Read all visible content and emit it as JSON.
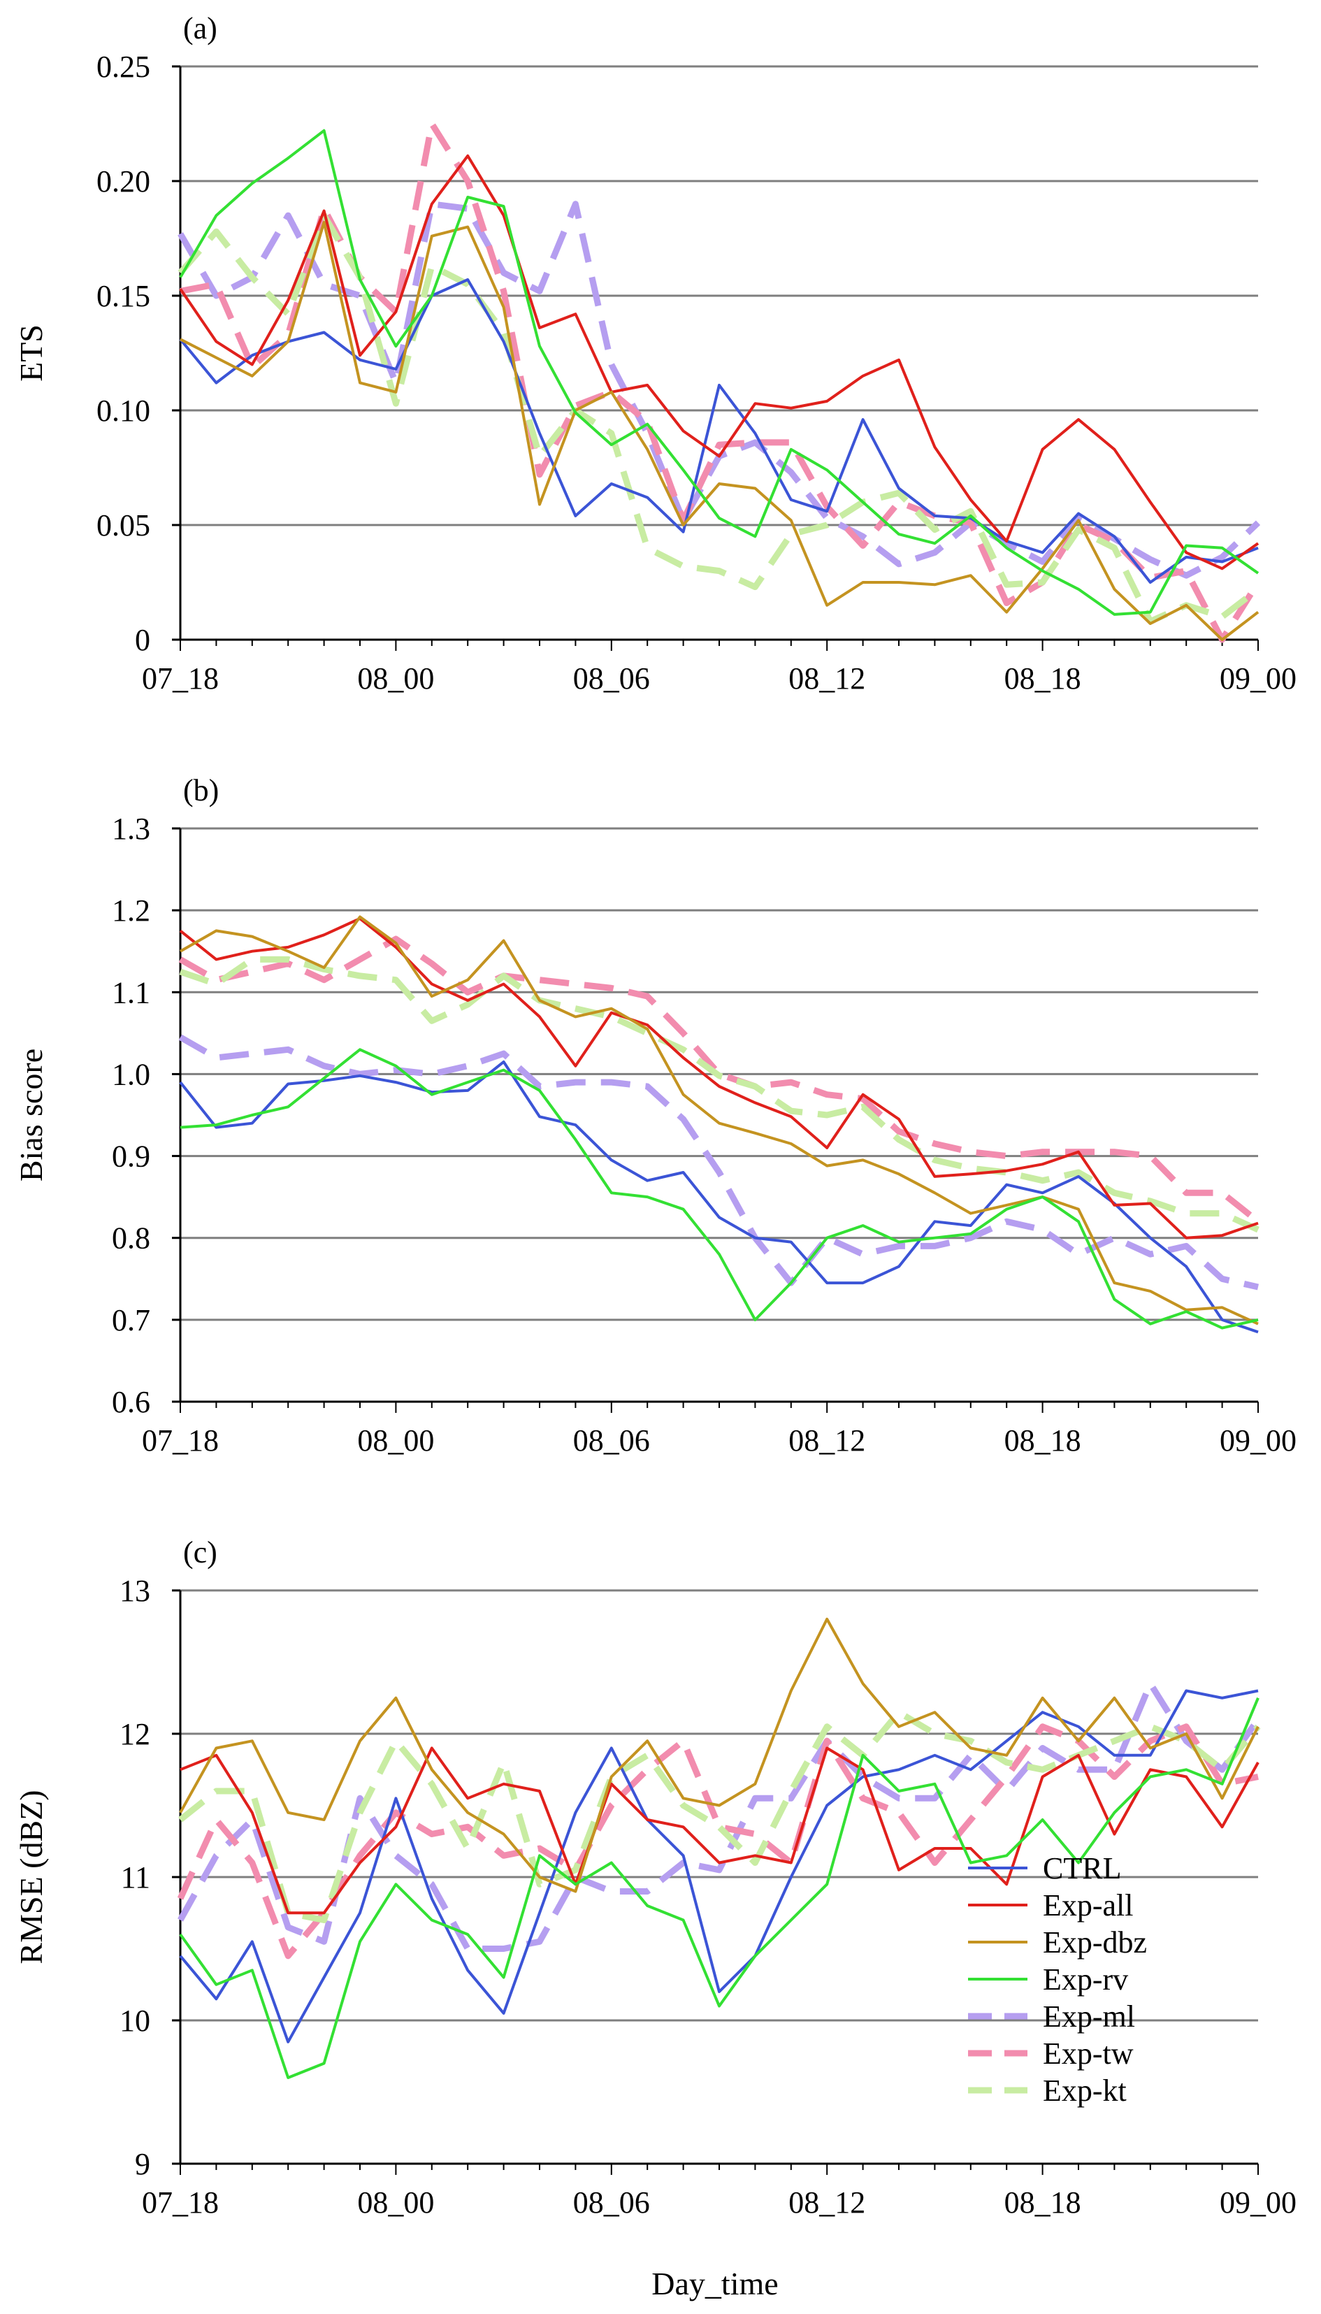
{
  "figure": {
    "xlabel": "Day_time",
    "x_tick_labels": [
      "07_18",
      "08_00",
      "08_06",
      "08_12",
      "08_18",
      "09_00"
    ],
    "legend": [
      "CTRL",
      "Exp-all",
      "Exp-dbz",
      "Exp-rv",
      "Exp-ml",
      "Exp-tw",
      "Exp-kt"
    ]
  },
  "series_style": [
    {
      "name": "CTRL",
      "color": "#3b54d6",
      "dashed": false
    },
    {
      "name": "Exp-all",
      "color": "#e0201b",
      "dashed": false
    },
    {
      "name": "Exp-dbz",
      "color": "#c49320",
      "dashed": false
    },
    {
      "name": "Exp-rv",
      "color": "#33e033",
      "dashed": false
    },
    {
      "name": "Exp-ml",
      "color": "#b59ef0",
      "dashed": true
    },
    {
      "name": "Exp-tw",
      "color": "#f28cae",
      "dashed": true
    },
    {
      "name": "Exp-kt",
      "color": "#c8eca2",
      "dashed": true
    }
  ],
  "chart_data": [
    {
      "type": "line",
      "panel_label": "(a)",
      "title": "",
      "xlabel": "",
      "ylabel": "ETS",
      "ylim": [
        0,
        0.25
      ],
      "y_ticks": [
        0,
        0.05,
        0.1,
        0.15,
        0.2,
        0.25
      ],
      "y_tick_labels": [
        "0",
        "0.05",
        "0.10",
        "0.15",
        "0.20",
        "0.25"
      ],
      "grid": true,
      "x_hours": [
        0,
        1,
        2,
        3,
        4,
        5,
        6,
        7,
        8,
        9,
        10,
        11,
        12,
        13,
        14,
        15,
        16,
        17,
        18,
        19,
        20,
        21,
        22,
        23,
        24,
        25,
        26,
        27,
        28,
        29,
        30
      ],
      "series": [
        {
          "name": "CTRL",
          "values": [
            0.131,
            0.112,
            0.124,
            0.13,
            0.134,
            0.122,
            0.118,
            0.15,
            0.157,
            0.13,
            0.09,
            0.054,
            0.068,
            0.062,
            0.047,
            0.111,
            0.09,
            0.061,
            0.056,
            0.096,
            0.066,
            0.054,
            0.053,
            0.043,
            0.038,
            0.055,
            0.045,
            0.025,
            0.036,
            0.034,
            0.04
          ]
        },
        {
          "name": "Exp-all",
          "values": [
            0.153,
            0.13,
            0.12,
            0.148,
            0.187,
            0.124,
            0.143,
            0.19,
            0.211,
            0.185,
            0.136,
            0.142,
            0.108,
            0.111,
            0.091,
            0.08,
            0.103,
            0.101,
            0.104,
            0.115,
            0.122,
            0.084,
            0.061,
            0.043,
            0.083,
            0.096,
            0.083,
            0.06,
            0.038,
            0.031,
            0.042
          ]
        },
        {
          "name": "Exp-dbz",
          "values": [
            0.131,
            0.123,
            0.115,
            0.13,
            0.182,
            0.112,
            0.108,
            0.176,
            0.18,
            0.145,
            0.059,
            0.1,
            0.108,
            0.083,
            0.05,
            0.068,
            0.066,
            0.052,
            0.015,
            0.025,
            0.025,
            0.024,
            0.028,
            0.012,
            0.031,
            0.052,
            0.022,
            0.007,
            0.015,
            0.0,
            0.012
          ]
        },
        {
          "name": "Exp-rv",
          "values": [
            0.158,
            0.185,
            0.199,
            0.21,
            0.222,
            0.157,
            0.128,
            0.15,
            0.193,
            0.189,
            0.128,
            0.099,
            0.085,
            0.094,
            0.074,
            0.053,
            0.045,
            0.083,
            0.074,
            0.06,
            0.046,
            0.042,
            0.054,
            0.04,
            0.03,
            0.022,
            0.011,
            0.012,
            0.041,
            0.04,
            0.029
          ]
        },
        {
          "name": "Exp-ml",
          "values": [
            0.177,
            0.15,
            0.158,
            0.185,
            0.155,
            0.15,
            0.112,
            0.19,
            0.188,
            0.16,
            0.152,
            0.19,
            0.12,
            0.09,
            0.052,
            0.08,
            0.086,
            0.073,
            0.053,
            0.045,
            0.033,
            0.038,
            0.051,
            0.042,
            0.034,
            0.053,
            0.044,
            0.035,
            0.028,
            0.036,
            0.051
          ]
        },
        {
          "name": "Exp-tw",
          "values": [
            0.152,
            0.155,
            0.119,
            0.133,
            0.188,
            0.158,
            0.143,
            0.225,
            0.2,
            0.152,
            0.072,
            0.102,
            0.108,
            0.095,
            0.052,
            0.085,
            0.086,
            0.086,
            0.058,
            0.041,
            0.06,
            0.054,
            0.051,
            0.016,
            0.025,
            0.05,
            0.043,
            0.027,
            0.03,
            0.0,
            0.025
          ]
        },
        {
          "name": "Exp-kt",
          "values": [
            0.16,
            0.178,
            0.158,
            0.142,
            0.185,
            0.158,
            0.103,
            0.163,
            0.155,
            0.134,
            0.08,
            0.1,
            0.09,
            0.04,
            0.032,
            0.03,
            0.023,
            0.046,
            0.05,
            0.06,
            0.064,
            0.048,
            0.056,
            0.024,
            0.025,
            0.048,
            0.04,
            0.008,
            0.015,
            0.01,
            0.022
          ]
        }
      ]
    },
    {
      "type": "line",
      "panel_label": "(b)",
      "title": "",
      "xlabel": "",
      "ylabel": "Bias score",
      "ylim": [
        0.6,
        1.3
      ],
      "y_ticks": [
        0.6,
        0.7,
        0.8,
        0.9,
        1.0,
        1.1,
        1.2,
        1.3
      ],
      "y_tick_labels": [
        "0.6",
        "0.7",
        "0.8",
        "0.9",
        "1.0",
        "1.1",
        "1.2",
        "1.3"
      ],
      "grid": true,
      "x_hours": [
        0,
        1,
        2,
        3,
        4,
        5,
        6,
        7,
        8,
        9,
        10,
        11,
        12,
        13,
        14,
        15,
        16,
        17,
        18,
        19,
        20,
        21,
        22,
        23,
        24,
        25,
        26,
        27,
        28,
        29,
        30
      ],
      "series": [
        {
          "name": "CTRL",
          "values": [
            0.99,
            0.935,
            0.94,
            0.988,
            0.992,
            0.998,
            0.99,
            0.978,
            0.98,
            1.015,
            0.948,
            0.938,
            0.895,
            0.87,
            0.88,
            0.825,
            0.8,
            0.795,
            0.745,
            0.745,
            0.765,
            0.82,
            0.815,
            0.865,
            0.855,
            0.875,
            0.842,
            0.8,
            0.765,
            0.7,
            0.685
          ]
        },
        {
          "name": "Exp-all",
          "values": [
            1.175,
            1.14,
            1.15,
            1.155,
            1.17,
            1.19,
            1.155,
            1.11,
            1.09,
            1.11,
            1.07,
            1.01,
            1.075,
            1.06,
            1.02,
            0.985,
            0.965,
            0.948,
            0.91,
            0.975,
            0.945,
            0.875,
            0.878,
            0.882,
            0.89,
            0.905,
            0.84,
            0.842,
            0.8,
            0.803,
            0.818
          ]
        },
        {
          "name": "Exp-dbz",
          "values": [
            1.15,
            1.175,
            1.168,
            1.15,
            1.13,
            1.192,
            1.16,
            1.095,
            1.115,
            1.163,
            1.09,
            1.07,
            1.08,
            1.055,
            0.975,
            0.94,
            0.928,
            0.915,
            0.888,
            0.895,
            0.878,
            0.855,
            0.83,
            0.84,
            0.85,
            0.835,
            0.745,
            0.735,
            0.712,
            0.715,
            0.695
          ]
        },
        {
          "name": "Exp-rv",
          "values": [
            0.935,
            0.938,
            0.95,
            0.96,
            0.995,
            1.03,
            1.01,
            0.975,
            0.99,
            1.005,
            0.98,
            0.92,
            0.855,
            0.85,
            0.835,
            0.78,
            0.7,
            0.745,
            0.8,
            0.815,
            0.795,
            0.8,
            0.805,
            0.835,
            0.85,
            0.82,
            0.725,
            0.695,
            0.71,
            0.69,
            0.7
          ]
        },
        {
          "name": "Exp-ml",
          "values": [
            1.045,
            1.02,
            1.025,
            1.03,
            1.01,
            1.0,
            1.005,
            1.0,
            1.01,
            1.025,
            0.985,
            0.99,
            0.99,
            0.985,
            0.945,
            0.88,
            0.8,
            0.745,
            0.8,
            0.78,
            0.79,
            0.79,
            0.8,
            0.82,
            0.81,
            0.78,
            0.8,
            0.78,
            0.79,
            0.75,
            0.74
          ]
        },
        {
          "name": "Exp-tw",
          "values": [
            1.14,
            1.115,
            1.125,
            1.135,
            1.115,
            1.14,
            1.165,
            1.135,
            1.1,
            1.12,
            1.115,
            1.11,
            1.105,
            1.095,
            1.05,
            1.0,
            0.985,
            0.99,
            0.975,
            0.97,
            0.93,
            0.915,
            0.905,
            0.9,
            0.905,
            0.905,
            0.905,
            0.9,
            0.855,
            0.855,
            0.82
          ]
        },
        {
          "name": "Exp-kt",
          "values": [
            1.125,
            1.11,
            1.14,
            1.14,
            1.128,
            1.12,
            1.115,
            1.065,
            1.085,
            1.12,
            1.09,
            1.08,
            1.07,
            1.05,
            1.03,
            0.998,
            0.985,
            0.955,
            0.95,
            0.96,
            0.92,
            0.895,
            0.885,
            0.88,
            0.87,
            0.88,
            0.855,
            0.845,
            0.83,
            0.83,
            0.81
          ]
        }
      ]
    },
    {
      "type": "line",
      "panel_label": "(c)",
      "title": "",
      "xlabel": "Day_time",
      "ylabel": "RMSE (dBZ)",
      "ylim": [
        9,
        13
      ],
      "y_ticks": [
        9,
        10,
        11,
        12,
        13
      ],
      "y_tick_labels": [
        "9",
        "10",
        "11",
        "12",
        "13"
      ],
      "grid": true,
      "legend_position": "bottom-right",
      "x_hours": [
        0,
        1,
        2,
        3,
        4,
        5,
        6,
        7,
        8,
        9,
        10,
        11,
        12,
        13,
        14,
        15,
        16,
        17,
        18,
        19,
        20,
        21,
        22,
        23,
        24,
        25,
        26,
        27,
        28,
        29,
        30
      ],
      "series": [
        {
          "name": "CTRL",
          "values": [
            10.45,
            10.15,
            10.55,
            9.85,
            10.3,
            10.75,
            11.55,
            10.85,
            10.35,
            10.05,
            10.75,
            11.45,
            11.9,
            11.4,
            11.15,
            10.2,
            10.45,
            11.0,
            11.5,
            11.7,
            11.75,
            11.85,
            11.75,
            11.95,
            12.15,
            12.05,
            11.85,
            11.85,
            12.3,
            12.25,
            12.3
          ]
        },
        {
          "name": "Exp-all",
          "values": [
            11.75,
            11.85,
            11.45,
            10.75,
            10.75,
            11.1,
            11.35,
            11.9,
            11.55,
            11.65,
            11.6,
            10.95,
            11.65,
            11.4,
            11.35,
            11.1,
            11.15,
            11.1,
            11.9,
            11.75,
            11.05,
            11.2,
            11.2,
            10.95,
            11.7,
            11.85,
            11.3,
            11.75,
            11.7,
            11.35,
            11.8
          ]
        },
        {
          "name": "Exp-dbz",
          "values": [
            11.45,
            11.9,
            11.95,
            11.45,
            11.4,
            11.95,
            12.25,
            11.75,
            11.45,
            11.3,
            11.0,
            10.9,
            11.7,
            11.95,
            11.55,
            11.5,
            11.65,
            12.3,
            12.8,
            12.35,
            12.05,
            12.15,
            11.9,
            11.85,
            12.25,
            11.95,
            12.25,
            11.9,
            12.0,
            11.55,
            12.05
          ]
        },
        {
          "name": "Exp-rv",
          "values": [
            10.6,
            10.25,
            10.35,
            9.6,
            9.7,
            10.55,
            10.95,
            10.7,
            10.6,
            10.3,
            11.15,
            10.95,
            11.1,
            10.8,
            10.7,
            10.1,
            10.45,
            10.7,
            10.95,
            11.85,
            11.6,
            11.65,
            11.1,
            11.15,
            11.4,
            11.1,
            11.45,
            11.7,
            11.75,
            11.65,
            12.25
          ]
        },
        {
          "name": "Exp-ml",
          "values": [
            10.7,
            11.15,
            11.4,
            10.65,
            10.55,
            11.55,
            11.15,
            10.95,
            10.5,
            10.5,
            10.55,
            11.0,
            10.9,
            10.9,
            11.1,
            11.05,
            11.55,
            11.55,
            11.95,
            11.7,
            11.55,
            11.55,
            11.85,
            11.6,
            11.9,
            11.75,
            11.75,
            12.35,
            11.95,
            11.75,
            12.1
          ]
        },
        {
          "name": "Exp-tw",
          "values": [
            10.85,
            11.4,
            11.1,
            10.45,
            10.75,
            11.15,
            11.45,
            11.3,
            11.35,
            11.15,
            11.2,
            11.05,
            11.5,
            11.75,
            11.95,
            11.35,
            11.3,
            11.1,
            11.95,
            11.55,
            11.45,
            11.1,
            11.4,
            11.7,
            12.05,
            11.95,
            11.7,
            11.95,
            12.05,
            11.65,
            11.7
          ]
        },
        {
          "name": "Exp-kt",
          "values": [
            11.4,
            11.6,
            11.6,
            10.75,
            10.7,
            11.45,
            11.95,
            11.65,
            11.2,
            11.8,
            10.95,
            11.05,
            11.7,
            11.85,
            11.5,
            11.35,
            11.1,
            11.6,
            12.05,
            11.85,
            12.15,
            12.0,
            11.95,
            11.8,
            11.75,
            11.85,
            11.95,
            12.05,
            11.95,
            11.75,
            12.05
          ]
        }
      ]
    }
  ]
}
